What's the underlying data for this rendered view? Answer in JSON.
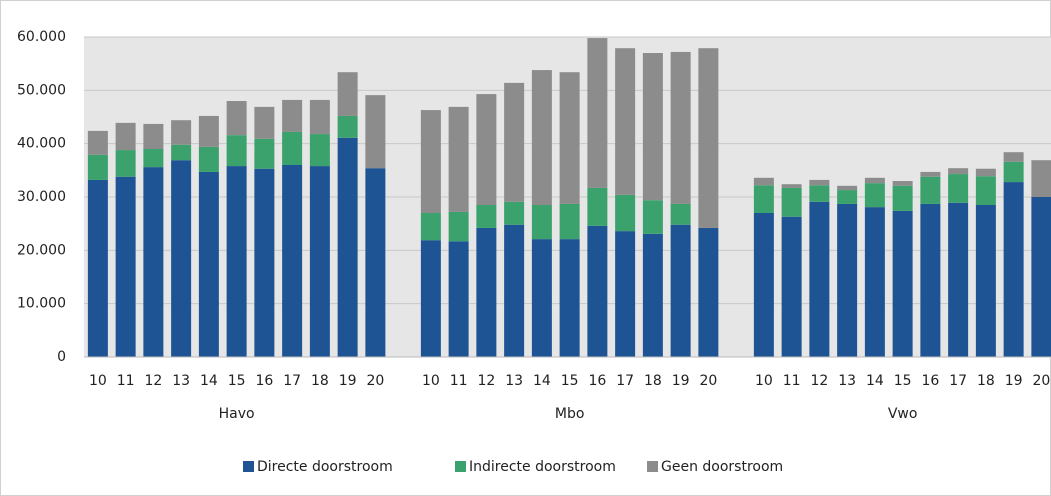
{
  "chart_data": {
    "type": "stacked-bar",
    "groups": [
      {
        "name": "Havo",
        "categories": [
          "10",
          "11",
          "12",
          "13",
          "14",
          "15",
          "16",
          "17",
          "18",
          "19",
          "20"
        ]
      },
      {
        "name": "Mbo",
        "categories": [
          "10",
          "11",
          "12",
          "13",
          "14",
          "15",
          "16",
          "17",
          "18",
          "19",
          "20"
        ]
      },
      {
        "name": "Vwo",
        "categories": [
          "10",
          "11",
          "12",
          "13",
          "14",
          "15",
          "16",
          "17",
          "18",
          "19",
          "20"
        ]
      }
    ],
    "series": [
      {
        "name": "Directe doorstroom",
        "color": "#1f5494",
        "values": [
          33200,
          33800,
          35600,
          36900,
          34700,
          35800,
          35300,
          36000,
          35800,
          41100,
          35400,
          21900,
          21700,
          24200,
          24800,
          22100,
          22100,
          24600,
          23600,
          23100,
          24800,
          24200,
          27000,
          26300,
          29100,
          28700,
          28100,
          27400,
          28700,
          28900,
          28500,
          32800,
          30000
        ]
      },
      {
        "name": "Indirecte doorstroom",
        "color": "#3ba26e",
        "values": [
          4700,
          5000,
          3400,
          2900,
          4700,
          5800,
          5600,
          6200,
          6000,
          4100,
          0,
          5100,
          5500,
          4300,
          4300,
          6400,
          6600,
          7100,
          6800,
          6300,
          3900,
          0,
          5200,
          5400,
          3100,
          2600,
          4500,
          4700,
          5100,
          5400,
          5400,
          3800,
          0
        ]
      },
      {
        "name": "Geen doorstroom",
        "color": "#8c8c8c",
        "values": [
          4500,
          5100,
          4700,
          4600,
          5800,
          6400,
          6000,
          6000,
          6400,
          8200,
          13700,
          19300,
          19700,
          20800,
          22300,
          25300,
          24700,
          28100,
          27500,
          27600,
          28500,
          33700,
          1400,
          700,
          1000,
          800,
          1000,
          900,
          900,
          1100,
          1400,
          1800,
          6900
        ]
      }
    ],
    "ylim": [
      0,
      60000
    ],
    "yticks": [
      0,
      {
        "value": 10000,
        "label": "10.000"
      },
      {
        "value": 20000,
        "label": "20.000"
      },
      {
        "value": 30000,
        "label": "30.000"
      },
      {
        "value": 40000,
        "label": "40.000"
      },
      {
        "value": 50000,
        "label": "50.000"
      },
      {
        "value": 60000,
        "label": "60.000"
      }
    ],
    "grid": true
  }
}
